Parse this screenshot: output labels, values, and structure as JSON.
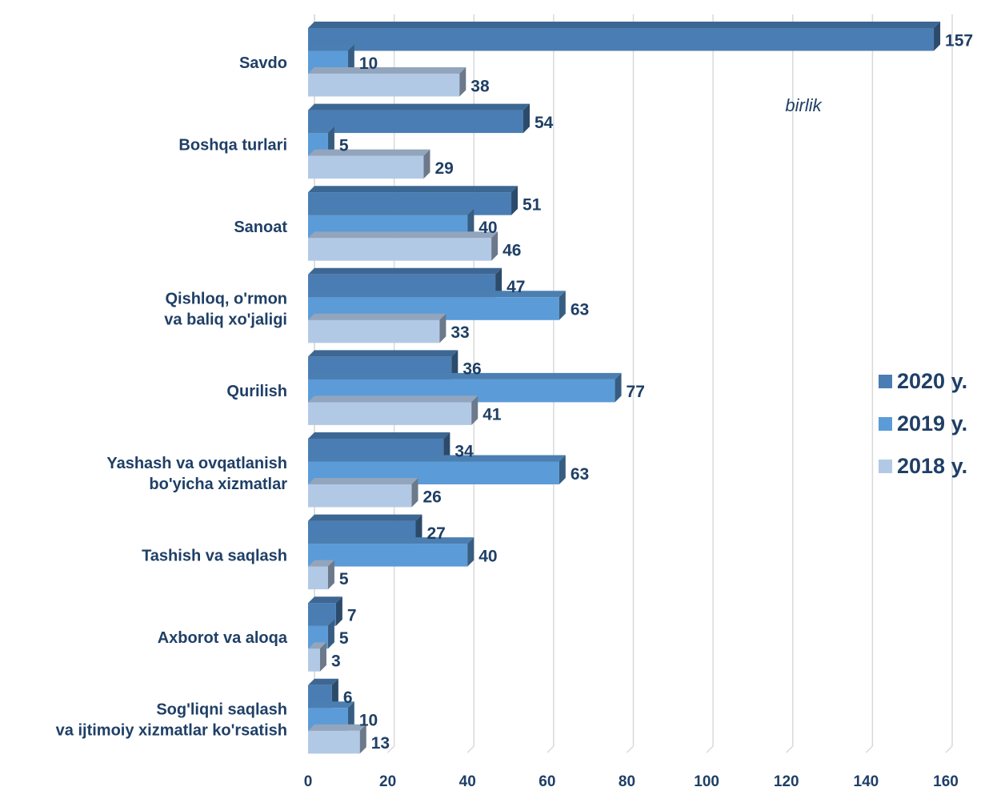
{
  "chart_data": {
    "type": "bar",
    "orientation": "horizontal",
    "unit_label": "birlik",
    "categories": [
      [
        "Savdo"
      ],
      [
        "Boshqa turlari"
      ],
      [
        "Sanoat"
      ],
      [
        "Qishloq, o'rmon",
        "va baliq xo'jaligi"
      ],
      [
        "Qurilish"
      ],
      [
        "Yashash va ovqatlanish",
        "bo'yicha xizmatlar"
      ],
      [
        "Tashish va saqlash"
      ],
      [
        "Axborot va aloqa"
      ],
      [
        "Sog'liqni saqlash",
        "va ijtimoiy xizmatlar ko'rsatish"
      ]
    ],
    "series": [
      {
        "name": "2020 y.",
        "color": "#4a7db3",
        "values": [
          157,
          54,
          51,
          47,
          36,
          34,
          27,
          7,
          6
        ]
      },
      {
        "name": "2019 y.",
        "color": "#5b9bd8",
        "values": [
          10,
          5,
          40,
          63,
          77,
          63,
          40,
          5,
          10
        ]
      },
      {
        "name": "2018 y.",
        "color": "#b2c9e6",
        "values": [
          38,
          29,
          46,
          33,
          41,
          26,
          5,
          3,
          13
        ]
      }
    ],
    "xlim": [
      0,
      160
    ],
    "x_ticks": [
      0,
      20,
      40,
      60,
      80,
      100,
      120,
      140,
      160
    ],
    "grid": "vertical",
    "legend_position": "right"
  }
}
